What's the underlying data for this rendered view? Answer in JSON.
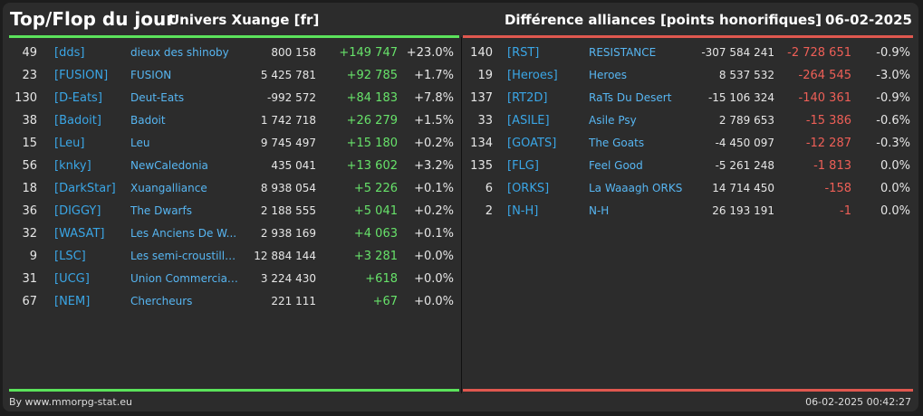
{
  "header": {
    "title": "Top/Flop du jour",
    "universe": "Univers Xuange [fr]",
    "metric": "Différence alliances [points honorifiques]",
    "date": "06-02-2025"
  },
  "top": [
    {
      "rank": "49",
      "tag": "[dds]",
      "name": "dieux des shinoby",
      "points": "800 158",
      "diff": "+149 747",
      "pct": "+23.0%"
    },
    {
      "rank": "23",
      "tag": "[FUSION]",
      "name": "FUSION",
      "points": "5 425 781",
      "diff": "+92 785",
      "pct": "+1.7%"
    },
    {
      "rank": "130",
      "tag": "[D-Eats]",
      "name": "Deut-Eats",
      "points": "-992 572",
      "diff": "+84 183",
      "pct": "+7.8%"
    },
    {
      "rank": "38",
      "tag": "[Badoit]",
      "name": "Badoit",
      "points": "1 742 718",
      "diff": "+26 279",
      "pct": "+1.5%"
    },
    {
      "rank": "15",
      "tag": "[Leu]",
      "name": "Leu",
      "points": "9 745 497",
      "diff": "+15 180",
      "pct": "+0.2%"
    },
    {
      "rank": "56",
      "tag": "[knky]",
      "name": "NewCaledonia",
      "points": "435 041",
      "diff": "+13 602",
      "pct": "+3.2%"
    },
    {
      "rank": "18",
      "tag": "[DarkStar]",
      "name": "Xuangalliance",
      "points": "8 938 054",
      "diff": "+5 226",
      "pct": "+0.1%"
    },
    {
      "rank": "36",
      "tag": "[DIGGY]",
      "name": "The Dwarfs",
      "points": "2 188 555",
      "diff": "+5 041",
      "pct": "+0.2%"
    },
    {
      "rank": "32",
      "tag": "[WASAT]",
      "name": "Les Anciens De W...",
      "points": "2 938 169",
      "diff": "+4 063",
      "pct": "+0.1%"
    },
    {
      "rank": "9",
      "tag": "[LSC]",
      "name": "Les semi-croustilla...",
      "points": "12 884 144",
      "diff": "+3 281",
      "pct": "+0.0%"
    },
    {
      "rank": "31",
      "tag": "[UCG]",
      "name": "Union Commerciale...",
      "points": "3 224 430",
      "diff": "+618",
      "pct": "+0.0%"
    },
    {
      "rank": "67",
      "tag": "[NEM]",
      "name": "Chercheurs",
      "points": "221 111",
      "diff": "+67",
      "pct": "+0.0%"
    }
  ],
  "flop": [
    {
      "rank": "140",
      "tag": "[RST]",
      "name": "RESISTANCE",
      "points": "-307 584 241",
      "diff": "-2 728 651",
      "pct": "-0.9%"
    },
    {
      "rank": "19",
      "tag": "[Heroes]",
      "name": "Heroes",
      "points": "8 537 532",
      "diff": "-264 545",
      "pct": "-3.0%"
    },
    {
      "rank": "137",
      "tag": "[RT2D]",
      "name": "RaTs Du Desert",
      "points": "-15 106 324",
      "diff": "-140 361",
      "pct": "-0.9%"
    },
    {
      "rank": "33",
      "tag": "[ASILE]",
      "name": "Asile Psy",
      "points": "2 789 653",
      "diff": "-15 386",
      "pct": "-0.6%"
    },
    {
      "rank": "134",
      "tag": "[GOATS]",
      "name": "The Goats",
      "points": "-4 450 097",
      "diff": "-12 287",
      "pct": "-0.3%"
    },
    {
      "rank": "135",
      "tag": "[FLG]",
      "name": "Feel Good",
      "points": "-5 261 248",
      "diff": "-1 813",
      "pct": "0.0%"
    },
    {
      "rank": "6",
      "tag": "[ORKS]",
      "name": "La Waaagh ORKS",
      "points": "14 714 450",
      "diff": "-158",
      "pct": "0.0%"
    },
    {
      "rank": "2",
      "tag": "[N-H]",
      "name": "N-H",
      "points": "26 193 191",
      "diff": "-1",
      "pct": "0.0%"
    }
  ],
  "footer": {
    "source": "By www.mmorpg-stat.eu",
    "timestamp": "06-02-2025 00:42:27"
  },
  "colors": {
    "positive": "#67e26a",
    "negative": "#ee5f57",
    "tag": "#3aa6e6",
    "name": "#57b6f2"
  }
}
